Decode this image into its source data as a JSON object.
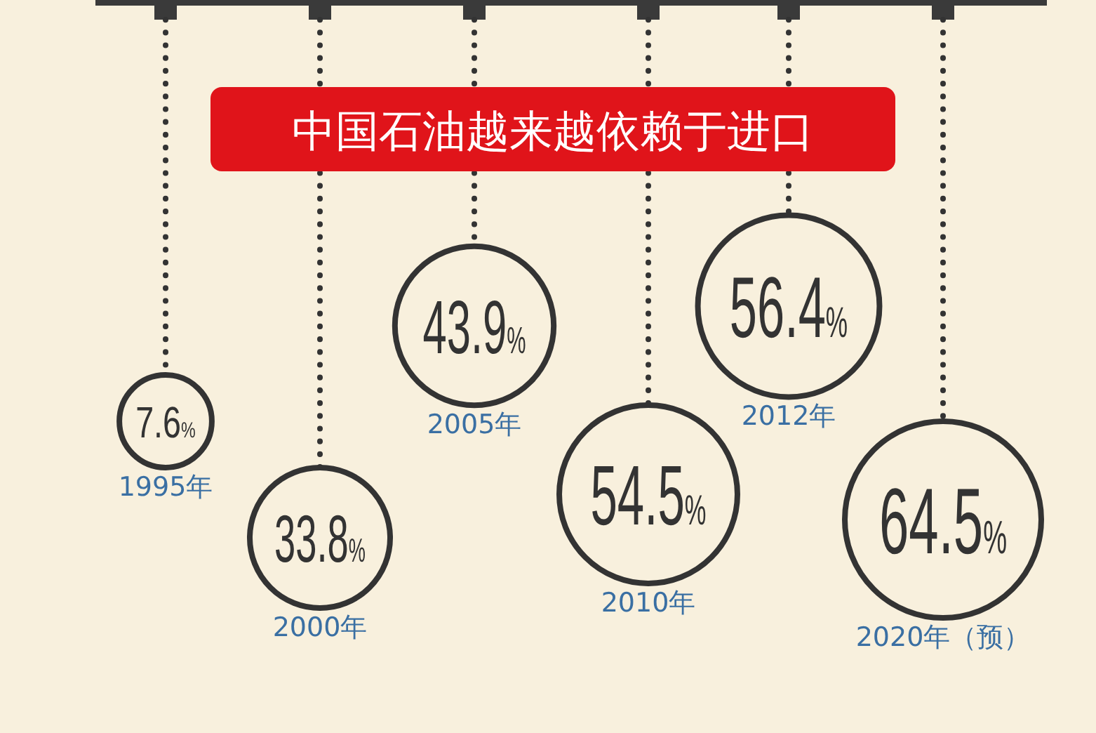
{
  "chart_data": {
    "type": "other",
    "title": "中国石油越来越依赖于进口",
    "categories": [
      "1995年",
      "2000年",
      "2005年",
      "2010年",
      "2012年",
      "2020年（预）"
    ],
    "values": [
      7.6,
      33.8,
      43.9,
      54.5,
      56.4,
      64.5
    ],
    "value_labels": [
      "7.6%",
      "33.8%",
      "43.9%",
      "54.5%",
      "56.4%",
      "64.5%"
    ],
    "color": "#333333"
  }
}
